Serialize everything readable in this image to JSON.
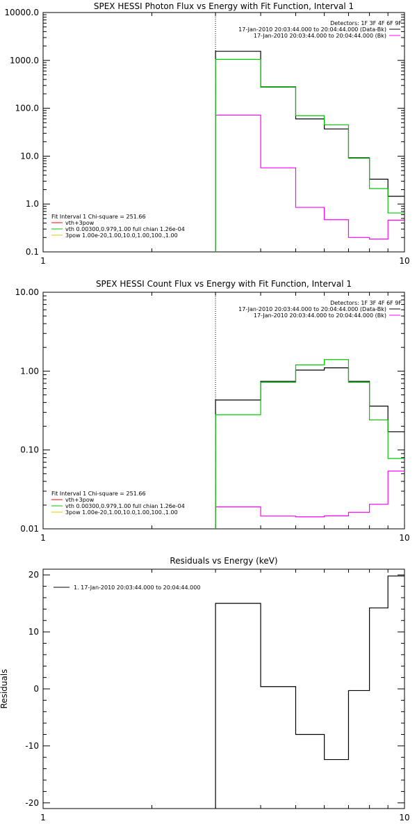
{
  "chart_data": [
    {
      "type": "line",
      "title": "SPEX HESSI Photon Flux vs Energy with Fit Function, Interval 1",
      "xlabel": "",
      "ylabel": "",
      "xlim": [
        1,
        10
      ],
      "ylim": [
        0.1,
        10000
      ],
      "xscale": "log",
      "yscale": "log",
      "x_tick_labels": [
        "1",
        "10"
      ],
      "y_tick_labels": [
        "0.1",
        "1.0",
        "10.0",
        "100.0",
        "1000.0",
        "10000.0"
      ],
      "vline_x": 3.0,
      "header_lines": [
        "Detectors: 1F 3F 4F 6F 9F"
      ],
      "series_legend": [
        {
          "label": "17-Jan-2010 20:03:44.000 to 20:04:44.000 (Data-Bk)",
          "color": "#000000"
        },
        {
          "label": "17-Jan-2010 20:03:44.000 to 20:04:44.000 (Bk)",
          "color": "#ff00ff"
        }
      ],
      "fit_legend_title": "Fit Interval 1    Chi-square = 251.66",
      "fit_legend": [
        {
          "label": "vth+3pow",
          "color": "#ff0000"
        },
        {
          "label": "vth 0.00300,0.979,1.00  full chian 1.26e-04",
          "color": "#00c800"
        },
        {
          "label": "3pow 1.00e-20,1.00,10.0,1.00,100.,1.00",
          "color": "#d2d200"
        }
      ],
      "bin_edges": [
        3.0,
        4.0,
        5.0,
        6.0,
        7.0,
        8.0,
        9.0,
        10.0
      ],
      "series": [
        {
          "name": "Data-Bk",
          "color": "#000000",
          "values": [
            1550,
            280,
            60,
            37,
            9.2,
            3.3,
            1.45
          ]
        },
        {
          "name": "Bk",
          "color": "#ff00ff",
          "values": [
            72,
            5.7,
            0.85,
            0.47,
            0.2,
            0.185,
            0.46
          ]
        },
        {
          "name": "vth+3pow",
          "color": "#00c800",
          "values": [
            1050,
            275,
            70,
            45,
            9.0,
            2.1,
            0.65
          ]
        }
      ]
    },
    {
      "type": "line",
      "title": "SPEX HESSI Count Flux vs Energy with Fit Function, Interval 1",
      "xlabel": "",
      "ylabel": "",
      "xlim": [
        1,
        10
      ],
      "ylim": [
        0.01,
        10
      ],
      "xscale": "log",
      "yscale": "log",
      "x_tick_labels": [
        "1",
        "10"
      ],
      "y_tick_labels": [
        "0.01",
        "0.10",
        "1.00",
        "10.00"
      ],
      "vline_x": 3.0,
      "header_lines": [
        "Detectors: 1F 3F 4F 6F 9F"
      ],
      "series_legend": [
        {
          "label": "17-Jan-2010 20:03:44.000 to 20:04:44.000 (Data-Bk)",
          "color": "#000000"
        },
        {
          "label": "17-Jan-2010 20:03:44.000 to 20:04:44.000 (Bk)",
          "color": "#ff00ff"
        }
      ],
      "fit_legend_title": "Fit Interval 1    Chi-square = 251.66",
      "fit_legend": [
        {
          "label": "vth+3pow",
          "color": "#ff0000"
        },
        {
          "label": "vth 0.00300,0.979,1.00  full chian 1.26e-04",
          "color": "#00c800"
        },
        {
          "label": "3pow 1.00e-20,1.00,10.0,1.00,100.,1.00",
          "color": "#d2d200"
        }
      ],
      "bin_edges": [
        3.0,
        4.0,
        5.0,
        6.0,
        7.0,
        8.0,
        9.0,
        10.0
      ],
      "series": [
        {
          "name": "Data-Bk",
          "color": "#000000",
          "values": [
            0.43,
            0.74,
            1.03,
            1.1,
            0.74,
            0.36,
            0.17
          ]
        },
        {
          "name": "Bk",
          "color": "#ff00ff",
          "values": [
            0.019,
            0.0145,
            0.0142,
            0.0146,
            0.0162,
            0.0205,
            0.054
          ]
        },
        {
          "name": "vth+3pow",
          "color": "#00c800",
          "values": [
            0.28,
            0.72,
            1.2,
            1.4,
            0.72,
            0.24,
            0.078
          ]
        }
      ]
    },
    {
      "type": "line",
      "title": "Residuals vs Energy (keV)",
      "xlabel": "",
      "ylabel": "Residuals",
      "xlim": [
        1,
        10
      ],
      "ylim": [
        -21,
        21
      ],
      "xscale": "log",
      "yscale": "linear",
      "x_tick_labels": [
        "1",
        "10"
      ],
      "y_ticks": [
        -20,
        -10,
        0,
        10,
        20
      ],
      "y_tick_labels": [
        "-20",
        "-10",
        "0",
        "10",
        "20"
      ],
      "series_legend": [
        {
          "label": "1. 17-Jan-2010 20:03:44.000 to 20:04:44.000",
          "color": "#000000"
        }
      ],
      "bin_edges": [
        3.0,
        4.0,
        5.0,
        6.0,
        7.0,
        8.0,
        9.0,
        10.0
      ],
      "series": [
        {
          "name": "1. 17-Jan-2010 20:03:44.000 to 20:04:44.000",
          "color": "#000000",
          "values": [
            15.0,
            0.4,
            -8.0,
            -12.4,
            -0.3,
            14.2,
            19.8
          ]
        }
      ]
    }
  ]
}
